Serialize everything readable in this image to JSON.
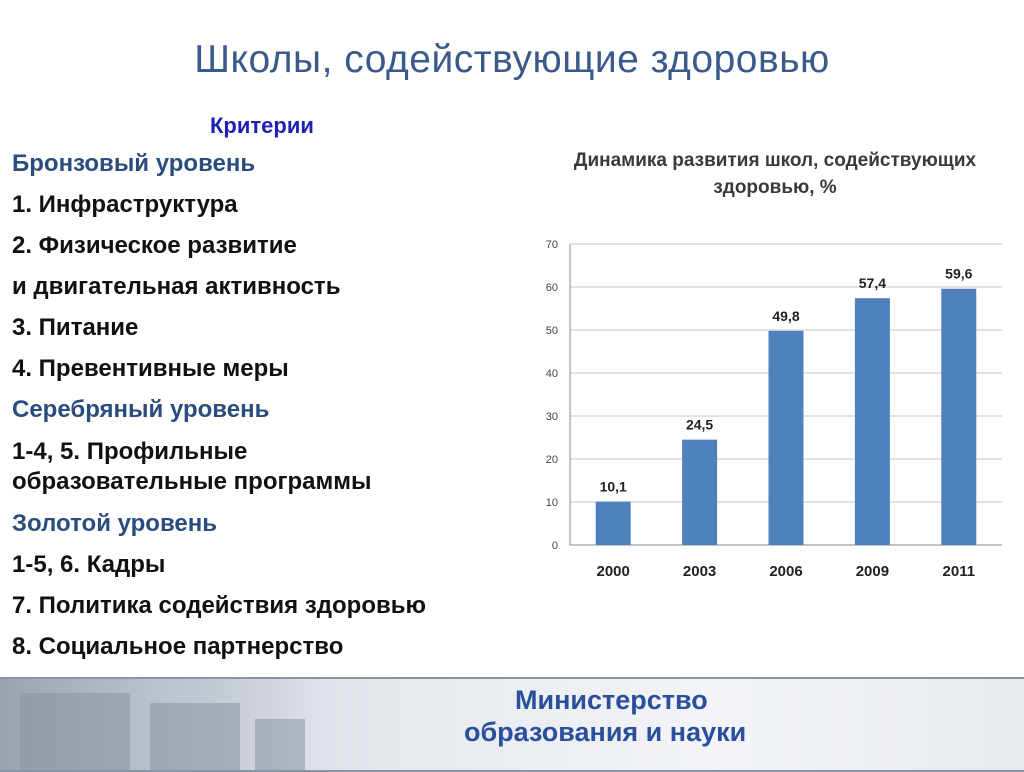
{
  "slide": {
    "title": "Школы, содействующие здоровью",
    "criteria_heading": "Критерии",
    "items": [
      {
        "text": "Бронзовый уровень",
        "kind": "level"
      },
      {
        "text": "1. Инфраструктура",
        "kind": "item"
      },
      {
        "text": "2. Физическое развитие",
        "kind": "item"
      },
      {
        "text": "и двигательная активность",
        "kind": "item"
      },
      {
        "text": "3. Питание",
        "kind": "item"
      },
      {
        "text": "4. Превентивные меры",
        "kind": "item"
      },
      {
        "text": "Серебряный уровень",
        "kind": "level"
      },
      {
        "text": "1-4, 5. Профильные образовательные программы",
        "kind": "item"
      },
      {
        "text": "Золотой уровень",
        "kind": "level"
      },
      {
        "text": "1-5, 6. Кадры",
        "kind": "item"
      },
      {
        "text": "7. Политика содействия здоровью",
        "kind": "item"
      },
      {
        "text": "8.   Социальное партнерство",
        "kind": "item"
      }
    ]
  },
  "chart_data": {
    "type": "bar",
    "title": "Динамика развития школ, содействующих здоровью, %",
    "categories": [
      "2000",
      "2003",
      "2006",
      "2009",
      "2011"
    ],
    "values": [
      10.1,
      24.5,
      49.8,
      57.4,
      59.6
    ],
    "value_labels": [
      "10,1",
      "24,5",
      "49,8",
      "57,4",
      "59,6"
    ],
    "ylim": [
      0,
      70
    ],
    "yticks": [
      0,
      10,
      20,
      30,
      40,
      50,
      60,
      70
    ],
    "grid": true,
    "bar_color": "#4f81bd"
  },
  "footer": {
    "line1": "Министерство",
    "line2": "образования и науки"
  }
}
